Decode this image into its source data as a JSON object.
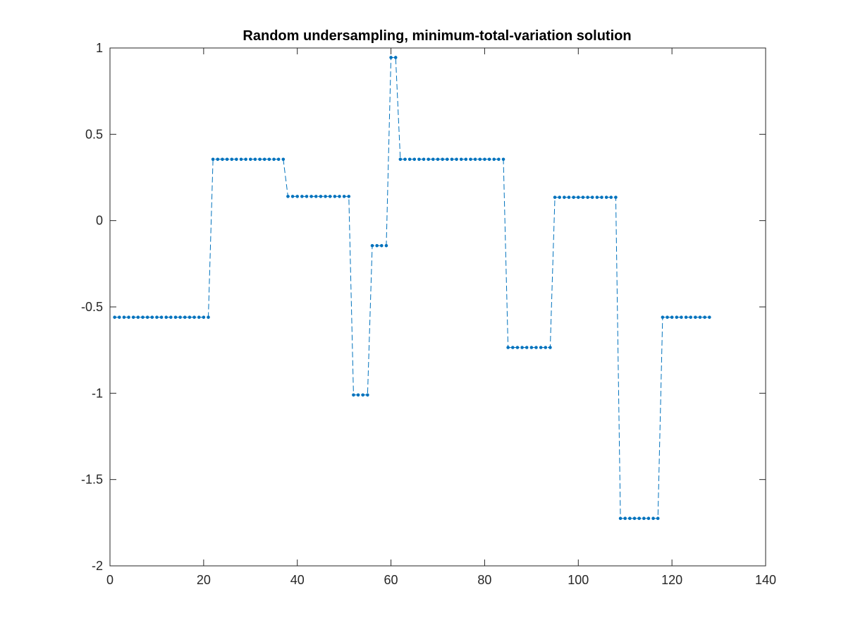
{
  "chart_data": {
    "type": "line",
    "title": "Random undersampling, minimum-total-variation solution",
    "xlabel": "",
    "ylabel": "",
    "xlim": [
      0,
      140
    ],
    "ylim": [
      -2,
      1
    ],
    "xticks": [
      0,
      20,
      40,
      60,
      80,
      100,
      120,
      140
    ],
    "yticks": [
      -2,
      -1.5,
      -1,
      -0.5,
      0,
      0.5,
      1
    ],
    "xtick_labels": [
      "0",
      "20",
      "40",
      "60",
      "80",
      "100",
      "120",
      "140"
    ],
    "ytick_labels": [
      "-2",
      "-1.5",
      "-1",
      "-0.5",
      "0",
      "0.5",
      "1"
    ],
    "grid": false,
    "line_style": "dashed",
    "marker": "dot",
    "color": "#0072BD",
    "segments": [
      {
        "from": 1,
        "to": 21,
        "y": -0.56
      },
      {
        "from": 22,
        "to": 37,
        "y": 0.355
      },
      {
        "from": 38,
        "to": 51,
        "y": 0.14
      },
      {
        "from": 52,
        "to": 55,
        "y": -1.01
      },
      {
        "from": 56,
        "to": 59,
        "y": -0.145
      },
      {
        "from": 60,
        "to": 61,
        "y": 0.945
      },
      {
        "from": 62,
        "to": 84,
        "y": 0.355
      },
      {
        "from": 85,
        "to": 94,
        "y": -0.735
      },
      {
        "from": 95,
        "to": 108,
        "y": 0.135
      },
      {
        "from": 109,
        "to": 117,
        "y": -1.725
      },
      {
        "from": 118,
        "to": 128,
        "y": -0.56
      }
    ]
  }
}
